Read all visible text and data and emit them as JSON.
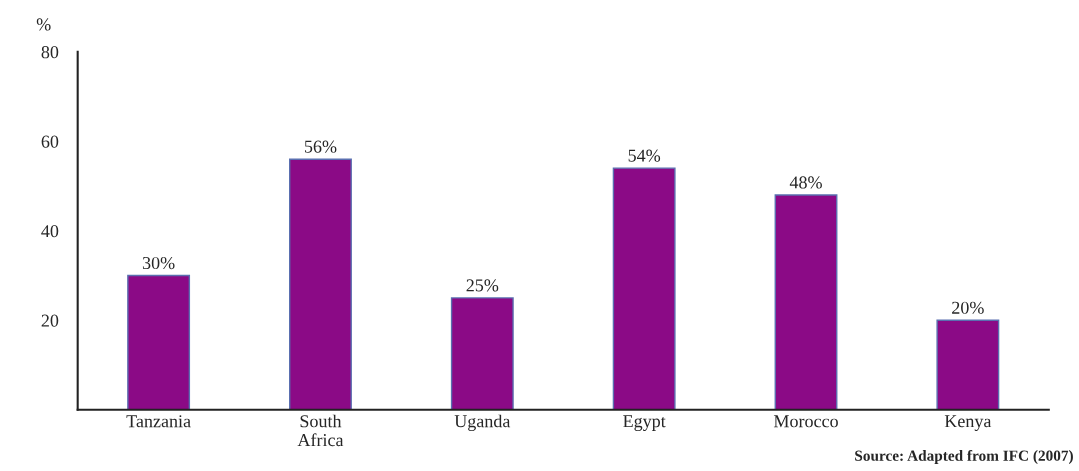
{
  "chart_data": {
    "type": "bar",
    "ylabel": "%",
    "categories": [
      "Tanzania",
      "South\nAfrica",
      "Uganda",
      "Egypt",
      "Morocco",
      "Kenya"
    ],
    "values": [
      30,
      56,
      25,
      54,
      48,
      20
    ],
    "value_labels": [
      "30%",
      "56%",
      "25%",
      "54%",
      "48%",
      "20%"
    ],
    "color": "#8b0a86",
    "ylim": [
      0,
      80
    ],
    "yticks": [
      20,
      40,
      60,
      80
    ],
    "grid": false,
    "legend": false,
    "annotations": [
      "Source: Adapted from IFC (2007)"
    ]
  }
}
